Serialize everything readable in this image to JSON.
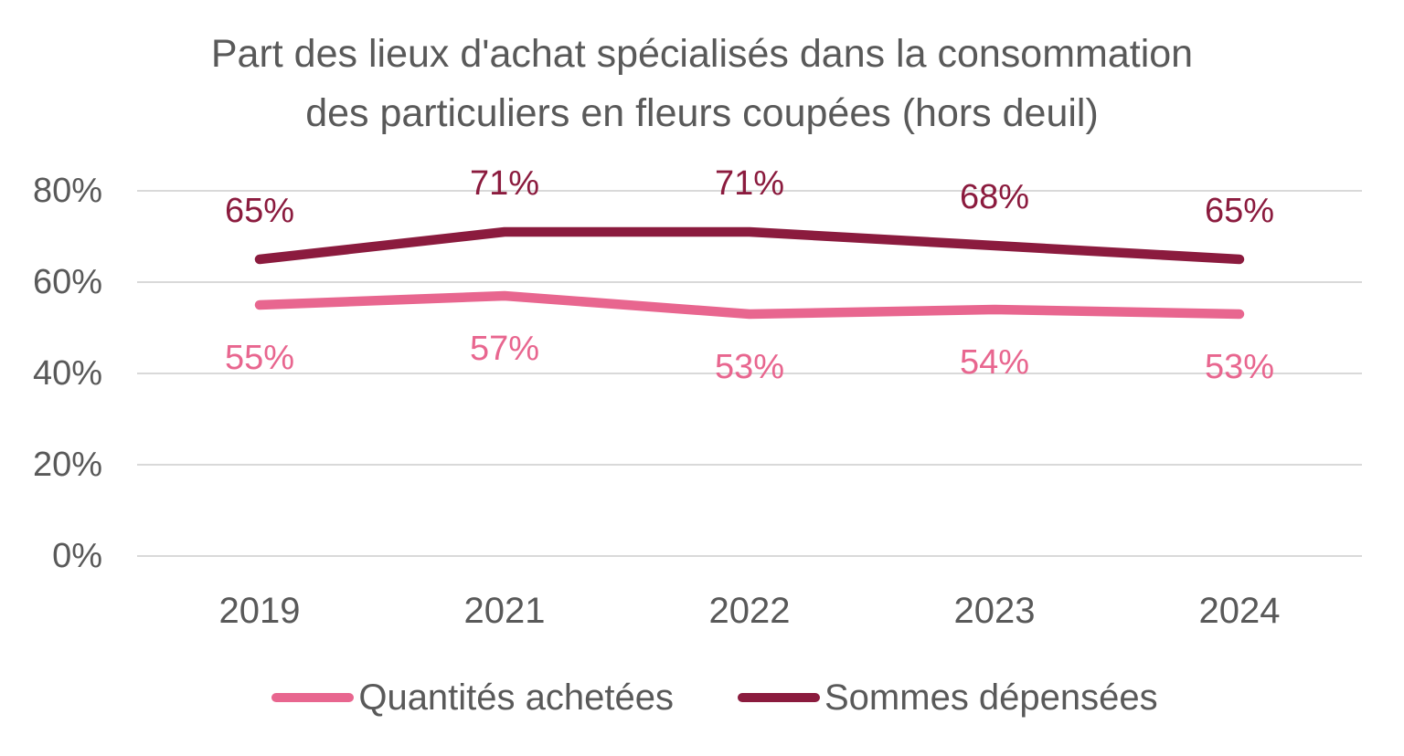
{
  "chart_data": {
    "type": "line",
    "title": "Part des lieux d'achat spécialisés dans la consommation des particuliers en fleurs coupées (hors deuil)",
    "title_lines": [
      "Part des lieux d'achat spécialisés dans la consommation",
      "des particuliers en fleurs coupées (hors deuil)"
    ],
    "categories": [
      "2019",
      "2021",
      "2022",
      "2023",
      "2024"
    ],
    "series": [
      {
        "name": "Quantités achetées",
        "color": "#E8668F",
        "values": [
          55,
          57,
          53,
          54,
          53
        ],
        "data_labels": [
          "55%",
          "57%",
          "53%",
          "54%",
          "53%"
        ],
        "label_position": "below"
      },
      {
        "name": "Sommes dépensées",
        "color": "#8B1B3E",
        "values": [
          65,
          71,
          71,
          68,
          65
        ],
        "data_labels": [
          "65%",
          "71%",
          "71%",
          "68%",
          "65%"
        ],
        "label_position": "above"
      }
    ],
    "y_axis": {
      "min": 0,
      "max": 80,
      "ticks": [
        {
          "value": 80,
          "label": "80%"
        },
        {
          "value": 60,
          "label": "60%"
        },
        {
          "value": 40,
          "label": "40%"
        },
        {
          "value": 20,
          "label": "20%"
        },
        {
          "value": 0,
          "label": "0%"
        }
      ]
    },
    "grid": "horizontal",
    "legend_position": "bottom",
    "colors": {
      "text": "#595959",
      "gridline": "#D9D9D9",
      "background": "#FFFFFF"
    }
  }
}
